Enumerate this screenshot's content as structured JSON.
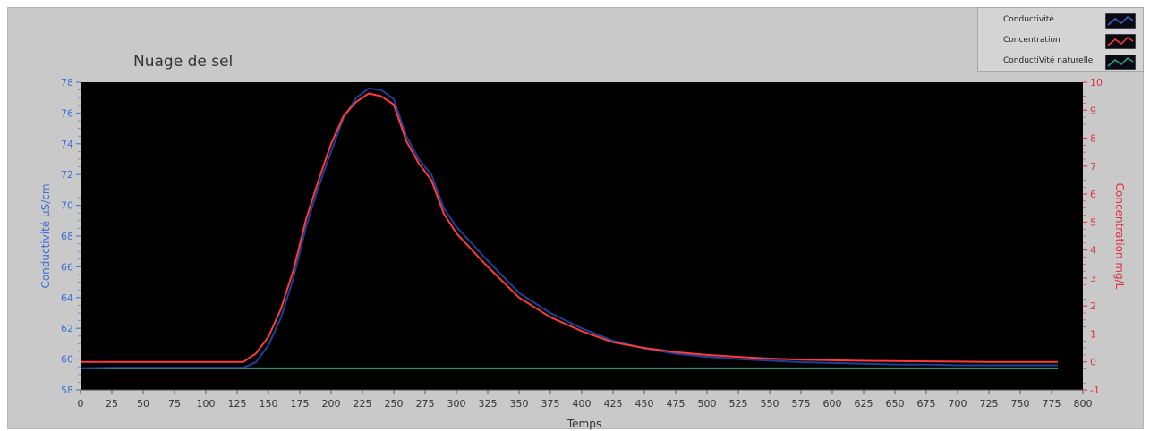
{
  "chart_data": {
    "type": "line",
    "title": "Nuage de sel",
    "xlabel": "Temps",
    "ylabel_left": "Conductivité µS/cm",
    "ylabel_right": "Concentration mg/L",
    "xlim": [
      0,
      800
    ],
    "ylim_left": [
      58,
      78
    ],
    "ylim_right": [
      -1,
      10
    ],
    "x_ticks": [
      0,
      25,
      50,
      75,
      100,
      125,
      150,
      175,
      200,
      225,
      250,
      275,
      300,
      325,
      350,
      375,
      400,
      425,
      450,
      475,
      500,
      525,
      550,
      575,
      600,
      625,
      650,
      675,
      700,
      725,
      750,
      775,
      800
    ],
    "y_left_ticks": [
      58,
      60,
      62,
      64,
      66,
      68,
      70,
      72,
      74,
      76,
      78
    ],
    "y_right_ticks": [
      -1,
      0,
      1,
      2,
      3,
      4,
      5,
      6,
      7,
      8,
      9,
      10
    ],
    "background": "#000000",
    "legend_placement": "top-right, outside plot",
    "series": [
      {
        "name": "Conductivité",
        "axis": "left",
        "color": "#1f3f9a",
        "x": [
          0,
          25,
          50,
          75,
          100,
          125,
          130,
          140,
          150,
          160,
          170,
          180,
          190,
          200,
          210,
          220,
          230,
          240,
          250,
          260,
          270,
          280,
          290,
          300,
          325,
          350,
          375,
          400,
          425,
          450,
          475,
          500,
          525,
          550,
          575,
          600,
          625,
          650,
          675,
          700,
          725,
          750,
          780
        ],
        "y": [
          59.4,
          59.45,
          59.45,
          59.45,
          59.45,
          59.45,
          59.45,
          59.8,
          60.9,
          62.7,
          65.3,
          68.6,
          71.2,
          73.5,
          75.7,
          77.0,
          77.6,
          77.5,
          76.9,
          74.5,
          73.0,
          72.0,
          69.8,
          68.6,
          66.4,
          64.3,
          63.0,
          62.0,
          61.2,
          60.7,
          60.35,
          60.15,
          60.0,
          59.9,
          59.8,
          59.75,
          59.7,
          59.65,
          59.65,
          59.6,
          59.6,
          59.6,
          59.6
        ]
      },
      {
        "name": "Concentration",
        "axis": "right",
        "color": "#ff3b3b",
        "x": [
          0,
          25,
          50,
          75,
          100,
          125,
          130,
          140,
          150,
          160,
          170,
          180,
          190,
          200,
          210,
          220,
          230,
          240,
          250,
          260,
          270,
          280,
          290,
          300,
          325,
          350,
          375,
          400,
          425,
          450,
          475,
          500,
          525,
          550,
          575,
          600,
          625,
          650,
          675,
          700,
          725,
          750,
          780
        ],
        "y": [
          0.0,
          0.0,
          0.0,
          0.0,
          0.0,
          0.0,
          0.0,
          0.3,
          0.9,
          1.9,
          3.3,
          5.1,
          6.5,
          7.8,
          8.8,
          9.3,
          9.6,
          9.5,
          9.2,
          7.9,
          7.1,
          6.5,
          5.3,
          4.6,
          3.4,
          2.3,
          1.6,
          1.1,
          0.7,
          0.5,
          0.35,
          0.25,
          0.18,
          0.12,
          0.08,
          0.06,
          0.04,
          0.03,
          0.02,
          0.01,
          0.0,
          0.0,
          0.0
        ]
      },
      {
        "name": "ConductiVité naturelle",
        "axis": "left",
        "color": "#2aa58a",
        "x": [
          0,
          780
        ],
        "y": [
          59.4,
          59.4
        ]
      }
    ]
  },
  "legend_swatch_bg": "#0a0a12"
}
